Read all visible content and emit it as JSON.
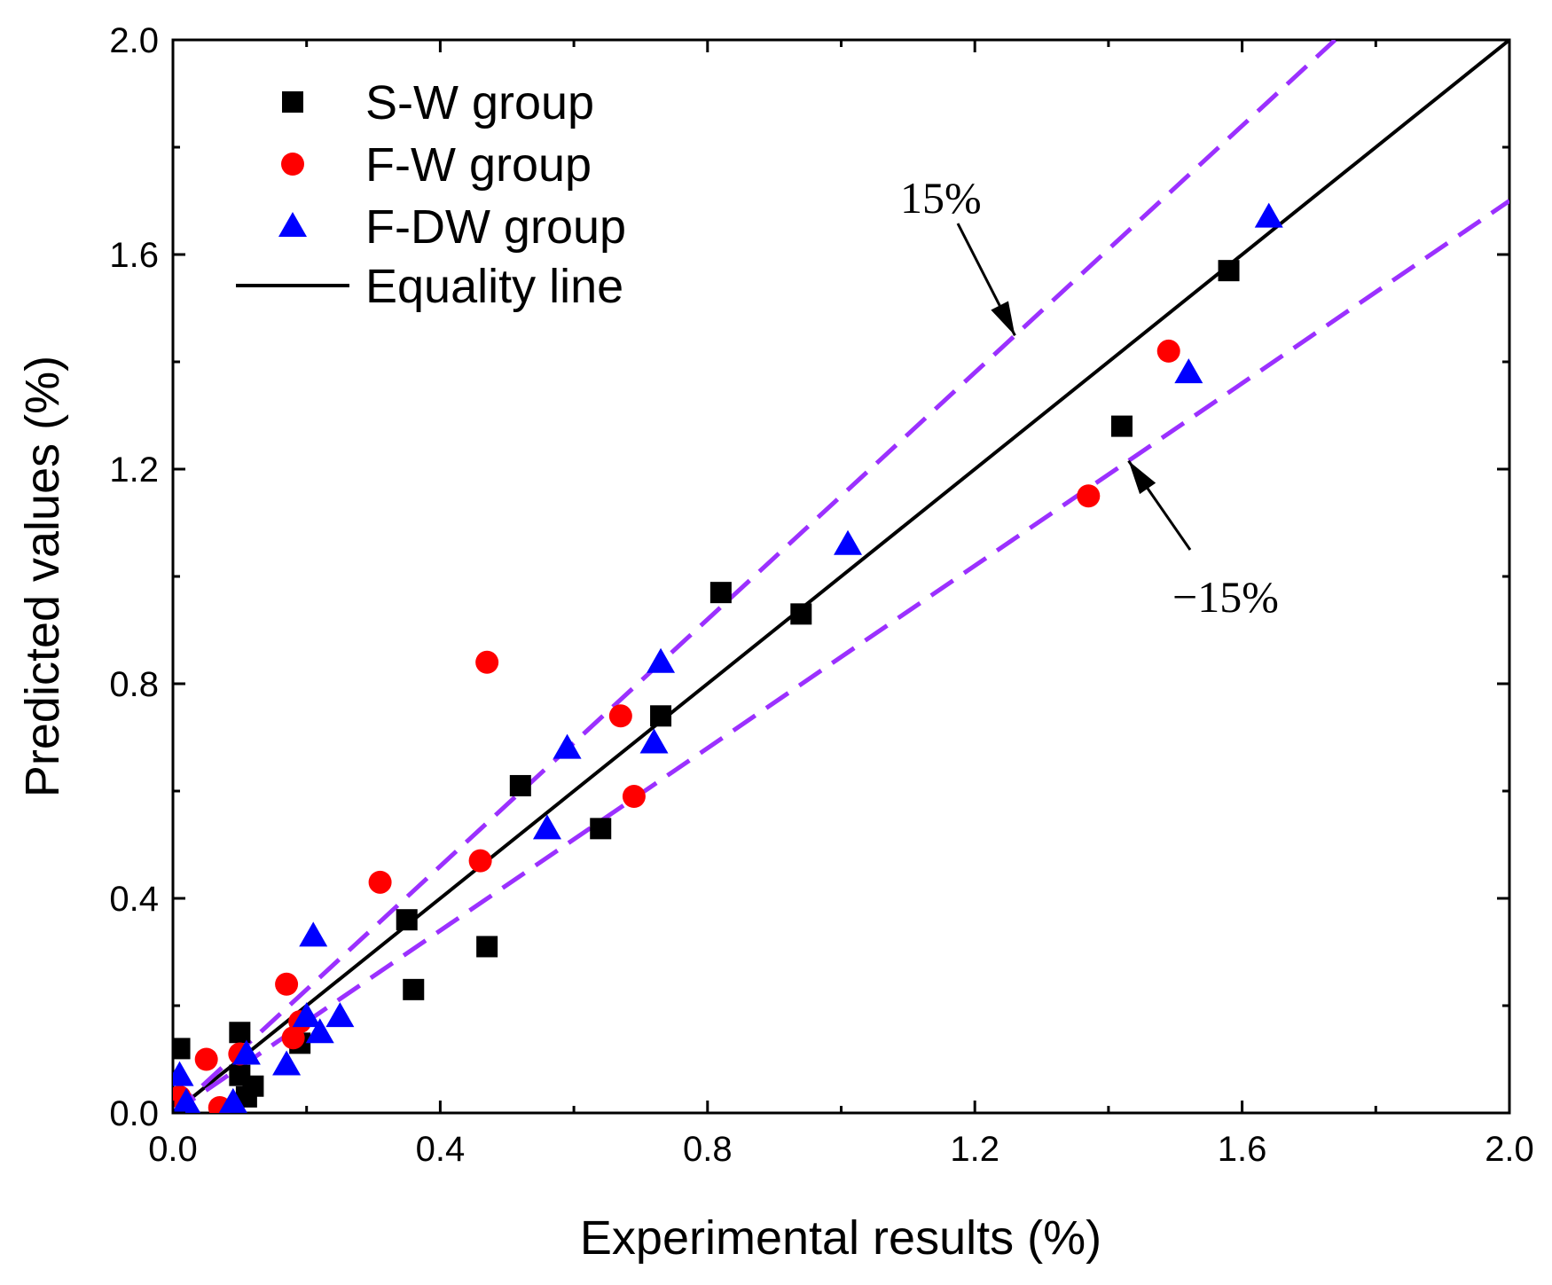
{
  "chart_data": {
    "type": "scatter",
    "xlabel": "Experimental results (%)",
    "ylabel": "Predicted values (%)",
    "xlim": [
      0.0,
      2.0
    ],
    "ylim": [
      0.0,
      2.0
    ],
    "xticks": [
      "0.0",
      "0.4",
      "0.8",
      "1.2",
      "1.6",
      "2.0"
    ],
    "yticks": [
      "0.0",
      "0.4",
      "0.8",
      "1.2",
      "1.6",
      "2.0"
    ],
    "tick_values": [
      0.0,
      0.4,
      0.8,
      1.2,
      1.6,
      2.0
    ],
    "minor_tick_values": [
      0.2,
      0.6,
      1.0,
      1.4,
      1.8
    ],
    "grid": false,
    "legend_position": "top-left",
    "series": [
      {
        "name": "S-W group",
        "marker": "square",
        "color": "#000000",
        "points": [
          [
            0.01,
            0.12
          ],
          [
            0.1,
            0.15
          ],
          [
            0.1,
            0.07
          ],
          [
            0.12,
            0.05
          ],
          [
            0.11,
            0.03
          ],
          [
            0.19,
            0.13
          ],
          [
            0.35,
            0.36
          ],
          [
            0.36,
            0.23
          ],
          [
            0.47,
            0.31
          ],
          [
            0.52,
            0.61
          ],
          [
            0.64,
            0.53
          ],
          [
            0.73,
            0.74
          ],
          [
            0.82,
            0.97
          ],
          [
            0.94,
            0.93
          ],
          [
            1.42,
            1.28
          ],
          [
            1.58,
            1.57
          ]
        ]
      },
      {
        "name": "F-W group",
        "marker": "circle",
        "color": "#ff0000",
        "points": [
          [
            0.01,
            0.03
          ],
          [
            0.05,
            0.1
          ],
          [
            0.07,
            0.01
          ],
          [
            0.1,
            0.11
          ],
          [
            0.17,
            0.24
          ],
          [
            0.18,
            0.14
          ],
          [
            0.19,
            0.17
          ],
          [
            0.31,
            0.43
          ],
          [
            0.46,
            0.47
          ],
          [
            0.47,
            0.84
          ],
          [
            0.67,
            0.74
          ],
          [
            0.69,
            0.59
          ],
          [
            1.37,
            1.15
          ],
          [
            1.49,
            1.42
          ]
        ]
      },
      {
        "name": "F-DW group",
        "marker": "triangle",
        "color": "#0000ff",
        "points": [
          [
            0.01,
            0.07
          ],
          [
            0.02,
            0.02
          ],
          [
            0.09,
            0.02
          ],
          [
            0.11,
            0.11
          ],
          [
            0.17,
            0.09
          ],
          [
            0.2,
            0.18
          ],
          [
            0.21,
            0.33
          ],
          [
            0.22,
            0.15
          ],
          [
            0.25,
            0.18
          ],
          [
            0.56,
            0.53
          ],
          [
            0.59,
            0.68
          ],
          [
            0.72,
            0.69
          ],
          [
            0.73,
            0.84
          ],
          [
            1.01,
            1.06
          ],
          [
            1.52,
            1.38
          ],
          [
            1.64,
            1.67
          ]
        ]
      }
    ],
    "lines": [
      {
        "name": "Equality line",
        "slope": 1.0,
        "color": "#000000",
        "style": "solid"
      },
      {
        "name": "15%",
        "slope": 1.15,
        "color": "#9b30ff",
        "style": "dashed"
      },
      {
        "name": "-15%",
        "slope": 0.85,
        "color": "#9b30ff",
        "style": "dashed"
      }
    ],
    "legend": [
      "S-W group",
      "F-W group",
      "F-DW group",
      "Equality line"
    ],
    "annotations": [
      {
        "text": "15%",
        "points_to": [
          1.26,
          1.449
        ]
      },
      {
        "text": "−15%",
        "points_to": [
          1.43,
          1.2155
        ]
      }
    ]
  }
}
